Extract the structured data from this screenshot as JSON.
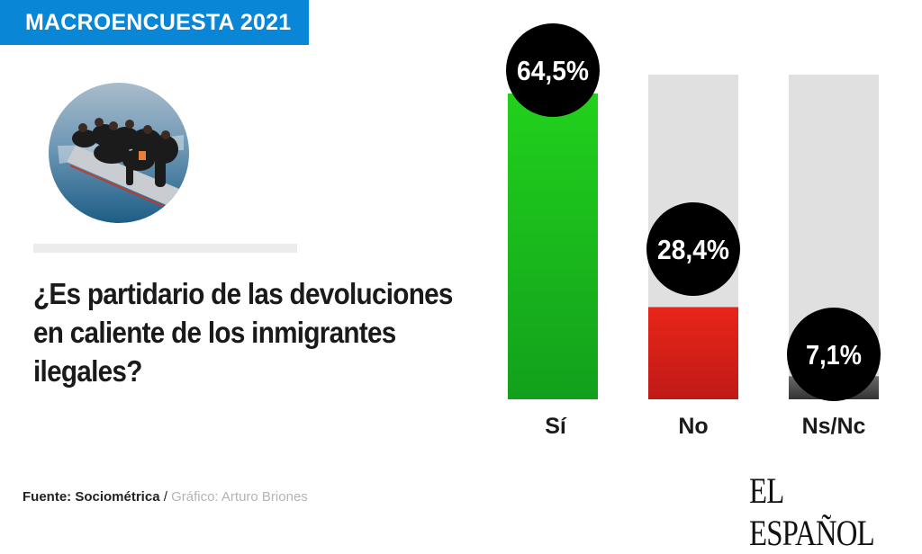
{
  "header": {
    "badge": "MACROENCUESTA 2021"
  },
  "image": {
    "alt": "Inmigrantes en una embarcación neumática en el mar"
  },
  "question": "¿Es partidario de las devoluciones en caliente de los inmigrantes ilegales?",
  "footer": {
    "source": "Fuente: Sociométrica",
    "separator": " / ",
    "credit": "Gráfico: Arturo Briones"
  },
  "brand": {
    "logo": "EL ESPAÑOL"
  },
  "colors": {
    "badge": "#0a86d6",
    "track": "#e0e0e0",
    "si": "#1ec41e",
    "no": "#dc2318",
    "nsnc": "#4a4a4a",
    "bubble": "#000000"
  },
  "chart_data": {
    "type": "bar",
    "title": "¿Es partidario de las devoluciones en caliente de los inmigrantes ilegales?",
    "categories": [
      "Sí",
      "No",
      "Ns/Nc"
    ],
    "values": [
      64.5,
      28.4,
      7.1
    ],
    "value_labels": [
      "64,5%",
      "28,4%",
      "7,1%"
    ],
    "unit": "%",
    "ylim": [
      0,
      100
    ],
    "grid": false,
    "legend": "none",
    "xlabel": "",
    "ylabel": ""
  }
}
